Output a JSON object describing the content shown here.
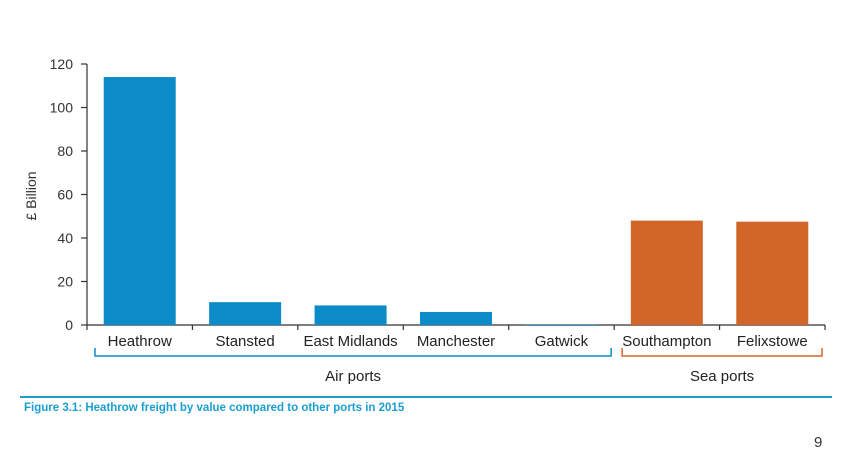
{
  "chart_data": {
    "type": "bar",
    "ylabel": "£ Billion",
    "ylim": [
      0,
      120
    ],
    "yticks": [
      0,
      20,
      40,
      60,
      80,
      100,
      120
    ],
    "categories": [
      "Heathrow",
      "Stansted",
      "East Midlands",
      "Manchester",
      "Gatwick",
      "Southampton",
      "Felixstowe"
    ],
    "values": [
      114,
      10.5,
      9,
      6,
      0.3,
      48,
      47.5
    ],
    "groups": [
      {
        "label": "Air ports",
        "categories": [
          "Heathrow",
          "Stansted",
          "East Midlands",
          "Manchester",
          "Gatwick"
        ],
        "color": "#0b8bc8"
      },
      {
        "label": "Sea ports",
        "categories": [
          "Southampton",
          "Felixstowe"
        ],
        "color": "#d2662a"
      }
    ],
    "grid": false
  },
  "caption": "Figure 3.1: Heathrow freight by value compared to other ports in 2015",
  "page_number": "9"
}
